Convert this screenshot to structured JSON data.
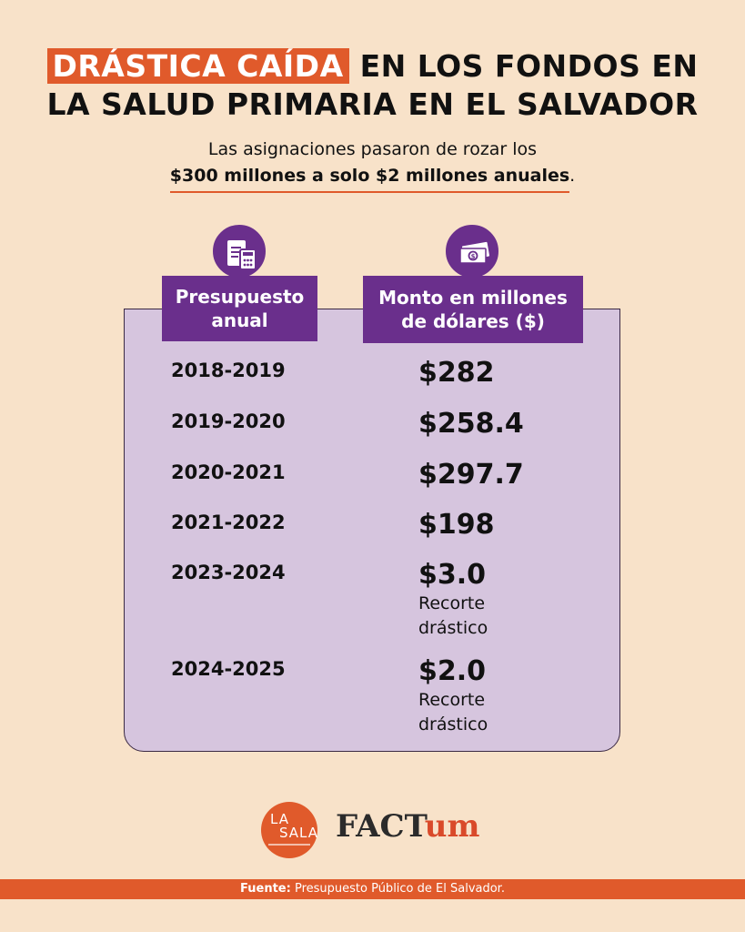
{
  "title": {
    "highlight": "DRÁSTICA CAÍDA",
    "line1_rest": " EN LOS FONDOS EN",
    "line2": "LA SALUD PRIMARIA EN EL SALVADOR"
  },
  "subtitle": {
    "line1": "Las asignaciones pasaron de rozar los",
    "line2_bold": "$300 millones a solo $2 millones anuales",
    "line2_end": "."
  },
  "table": {
    "header_year": "Presupuesto anual",
    "header_amount": "Monto en millones de dólares ($)",
    "rows": [
      {
        "year": "2018-2019",
        "amount": "$282",
        "note": ""
      },
      {
        "year": "2019-2020",
        "amount": "$258.4",
        "note": ""
      },
      {
        "year": "2020-2021",
        "amount": "$297.7",
        "note": ""
      },
      {
        "year": "2021-2022",
        "amount": "$198",
        "note": ""
      },
      {
        "year": "2023-2024",
        "amount": "$3.0",
        "note": "Recorte drástico"
      },
      {
        "year": "2024-2025",
        "amount": "$2.0",
        "note": "Recorte drástico"
      }
    ]
  },
  "icons": {
    "year_header": "calculator-document-icon",
    "amount_header": "banknote-icon"
  },
  "logos": {
    "lasala": "LA SALA",
    "factum_a": "FACT",
    "factum_b": "um"
  },
  "footer": {
    "label": "Fuente:",
    "text": " Presupuesto Público de El Salvador."
  },
  "colors": {
    "accent": "#e05a2b",
    "purple": "#6a2f8c",
    "panel": "#d6c5de",
    "background": "#f8e2c9"
  }
}
